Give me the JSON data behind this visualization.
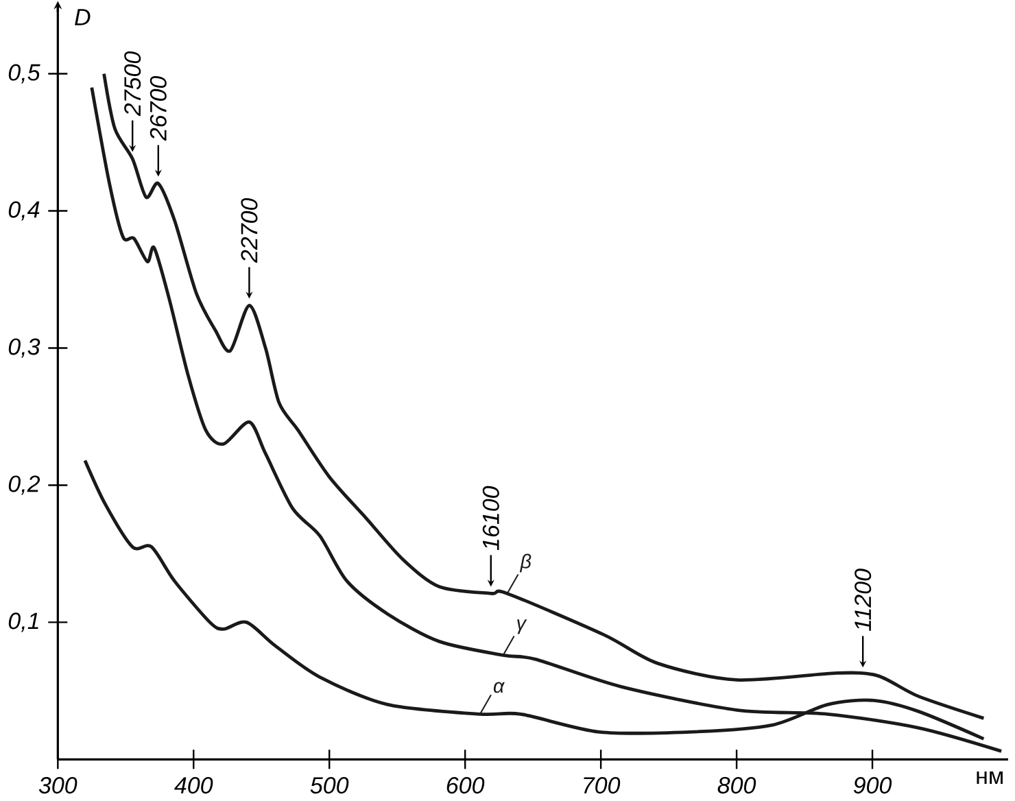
{
  "chart_data": {
    "type": "line",
    "xlabel": "нм",
    "ylabel": "D",
    "xlim": [
      300,
      1000
    ],
    "ylim": [
      0,
      0.55
    ],
    "xticks": [
      300,
      400,
      500,
      600,
      700,
      800,
      900
    ],
    "yticks": [
      {
        "value": 0.1,
        "label": "0,1"
      },
      {
        "value": 0.2,
        "label": "0,2"
      },
      {
        "value": 0.3,
        "label": "0,3"
      },
      {
        "value": 0.4,
        "label": "0,4"
      },
      {
        "value": 0.5,
        "label": "0,5"
      }
    ],
    "grid": false,
    "legend": false,
    "marker": "none",
    "line_style": "solid",
    "series": [
      {
        "name": "α",
        "color": "#1a1a1a",
        "x": [
          320,
          335,
          355,
          369,
          386,
          412,
          422,
          439,
          460,
          493,
          543,
          611,
          641,
          699,
          766,
          826,
          867,
          901,
          934,
          982
        ],
        "values": [
          0.218,
          0.186,
          0.155,
          0.155,
          0.13,
          0.1,
          0.095,
          0.1,
          0.083,
          0.06,
          0.04,
          0.033,
          0.033,
          0.02,
          0.02,
          0.025,
          0.04,
          0.043,
          0.035,
          0.015
        ]
      },
      {
        "name": "β",
        "color": "#1a1a1a",
        "x": [
          334,
          342,
          355,
          365,
          374,
          386,
          402,
          416,
          427,
          441,
          453,
          463,
          477,
          500,
          527,
          554,
          581,
          619,
          631,
          702,
          742,
          800,
          874,
          904,
          934,
          982
        ],
        "values": [
          0.5,
          0.46,
          0.438,
          0.41,
          0.42,
          0.393,
          0.34,
          0.313,
          0.298,
          0.331,
          0.3,
          0.26,
          0.24,
          0.206,
          0.176,
          0.146,
          0.126,
          0.121,
          0.121,
          0.091,
          0.07,
          0.058,
          0.063,
          0.061,
          0.046,
          0.03
        ]
      },
      {
        "name": "γ",
        "color": "#1a1a1a",
        "x": [
          325,
          338,
          348,
          356,
          366,
          371,
          382,
          396,
          409,
          422,
          441,
          453,
          473,
          493,
          513,
          543,
          581,
          628,
          652,
          715,
          800,
          867,
          934,
          995
        ],
        "values": [
          0.49,
          0.42,
          0.381,
          0.38,
          0.363,
          0.373,
          0.336,
          0.28,
          0.24,
          0.23,
          0.246,
          0.223,
          0.183,
          0.163,
          0.13,
          0.106,
          0.086,
          0.076,
          0.073,
          0.053,
          0.036,
          0.033,
          0.023,
          0.006
        ]
      }
    ],
    "annotations": [
      {
        "text": "27500",
        "x": 355,
        "y": 0.438
      },
      {
        "text": "26700",
        "x": 374,
        "y": 0.42
      },
      {
        "text": "22700",
        "x": 441,
        "y": 0.331
      },
      {
        "text": "16100",
        "x": 619,
        "y": 0.121
      },
      {
        "text": "11200",
        "x": 893,
        "y": 0.062
      }
    ]
  }
}
